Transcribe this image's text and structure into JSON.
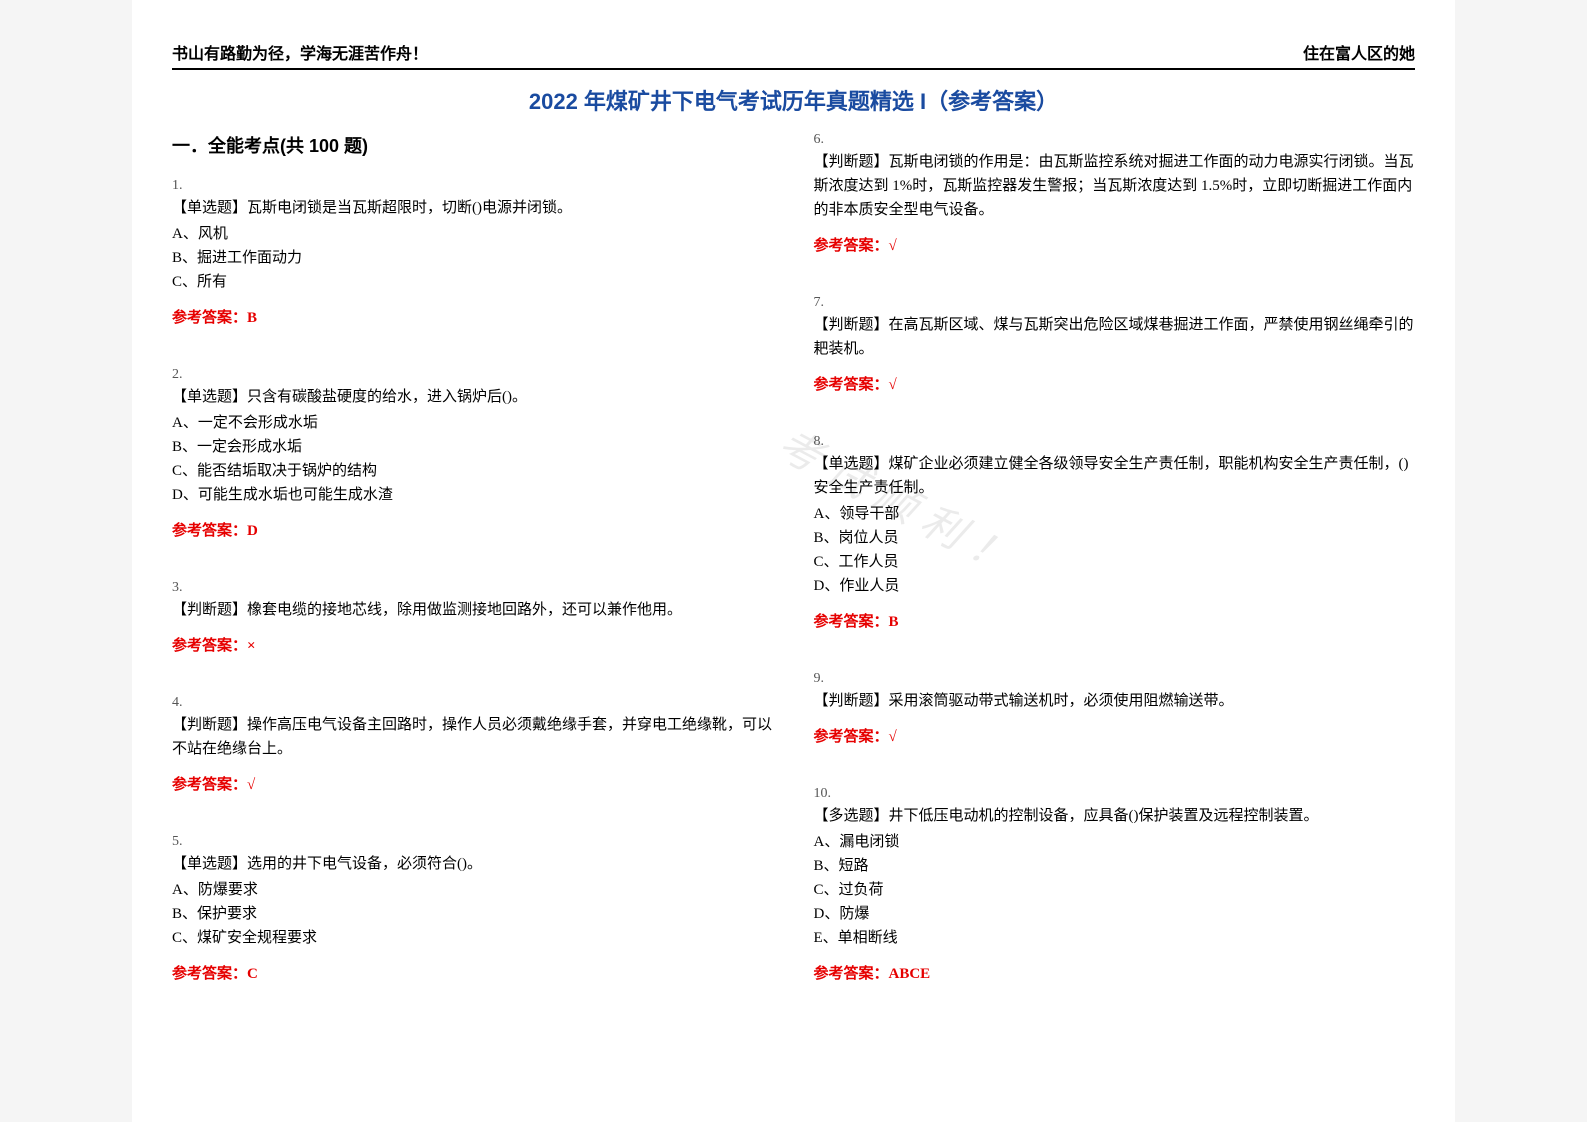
{
  "header": {
    "left": "书山有路勤为径，学海无涯苦作舟！",
    "right": "住在富人区的她"
  },
  "title": "2022 年煤矿井下电气考试历年真题精选 I（参考答案）",
  "section_heading": "一．全能考点(共 100 题)",
  "answer_prefix": "参考答案：",
  "watermark": "考试顺利！",
  "colors": {
    "title": "#1a4ba0",
    "answer": "#e60000",
    "text": "#000000",
    "page_bg": "#ffffff",
    "body_bg": "#f5f5f5"
  },
  "questions_left": [
    {
      "num": "1.",
      "stem": "【单选题】瓦斯电闭锁是当瓦斯超限时，切断()电源并闭锁。",
      "opts": [
        "A、风机",
        "B、掘进工作面动力",
        "C、所有"
      ],
      "answer": "B"
    },
    {
      "num": "2.",
      "stem": "【单选题】只含有碳酸盐硬度的给水，进入锅炉后()。",
      "opts": [
        "A、一定不会形成水垢",
        "B、一定会形成水垢",
        "C、能否结垢取决于锅炉的结构",
        "D、可能生成水垢也可能生成水渣"
      ],
      "answer": "D"
    },
    {
      "num": "3.",
      "stem": "【判断题】橡套电缆的接地芯线，除用做监测接地回路外，还可以兼作他用。",
      "opts": [],
      "answer": "×"
    },
    {
      "num": "4.",
      "stem": "【判断题】操作高压电气设备主回路时，操作人员必须戴绝缘手套，并穿电工绝缘靴，可以不站在绝缘台上。",
      "opts": [],
      "answer": "√"
    },
    {
      "num": "5.",
      "stem": "【单选题】选用的井下电气设备，必须符合()。",
      "opts": [
        "A、防爆要求",
        "B、保护要求",
        "C、煤矿安全规程要求"
      ],
      "answer": "C"
    }
  ],
  "questions_right": [
    {
      "num": "6.",
      "stem": "【判断题】瓦斯电闭锁的作用是：由瓦斯监控系统对掘进工作面的动力电源实行闭锁。当瓦斯浓度达到 1%时，瓦斯监控器发生警报；当瓦斯浓度达到 1.5%时，立即切断掘进工作面内的非本质安全型电气设备。",
      "opts": [],
      "answer": "√"
    },
    {
      "num": "7.",
      "stem": "【判断题】在高瓦斯区域、煤与瓦斯突出危险区域煤巷掘进工作面，严禁使用钢丝绳牵引的耙装机。",
      "opts": [],
      "answer": "√"
    },
    {
      "num": "8.",
      "stem": "【单选题】煤矿企业必须建立健全各级领导安全生产责任制，职能机构安全生产责任制，()安全生产责任制。",
      "opts": [
        "A、领导干部",
        "B、岗位人员",
        "C、工作人员",
        "D、作业人员"
      ],
      "answer": "B"
    },
    {
      "num": "9.",
      "stem": "【判断题】采用滚筒驱动带式输送机时，必须使用阻燃输送带。",
      "opts": [],
      "answer": "√"
    },
    {
      "num": "10.",
      "stem": "【多选题】井下低压电动机的控制设备，应具备()保护装置及远程控制装置。",
      "opts": [
        "A、漏电闭锁",
        "B、短路",
        "C、过负荷",
        "D、防爆",
        "E、单相断线"
      ],
      "answer": "ABCE"
    }
  ]
}
